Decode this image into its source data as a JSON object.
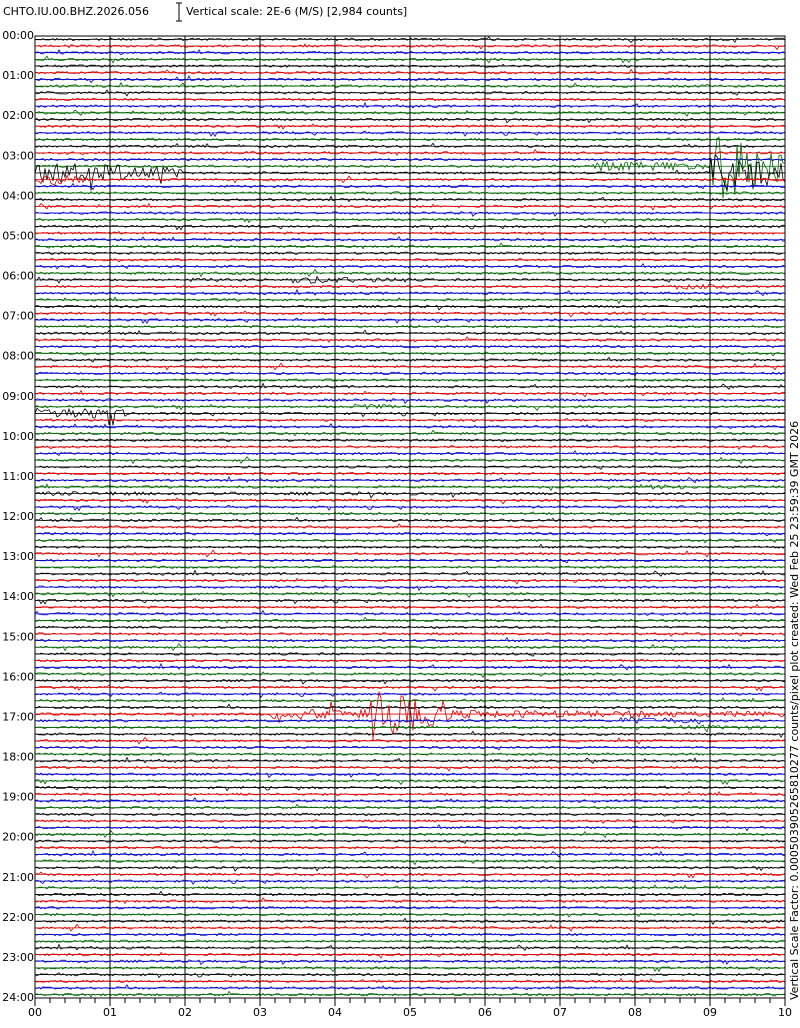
{
  "header": {
    "station": "CHTO.IU.00.BHZ.2026.056",
    "scale": "Vertical scale: 2E-6 (M/S) [2,984 counts]"
  },
  "y_labels": [
    "00:00",
    "01:00",
    "02:00",
    "03:00",
    "04:00",
    "05:00",
    "06:00",
    "07:00",
    "08:00",
    "09:00",
    "10:00",
    "11:00",
    "12:00",
    "13:00",
    "14:00",
    "15:00",
    "16:00",
    "17:00",
    "18:00",
    "19:00",
    "20:00",
    "21:00",
    "22:00",
    "23:00",
    "24:00"
  ],
  "x_labels": [
    "00",
    "01",
    "02",
    "03",
    "04",
    "05",
    "06",
    "07",
    "08",
    "09",
    "10"
  ],
  "side_note": "Vertical Scale Factor: 0.000503905265810277 counts/pixel plot created: Wed Feb 25 23:59:39 GMT 2026"
}
